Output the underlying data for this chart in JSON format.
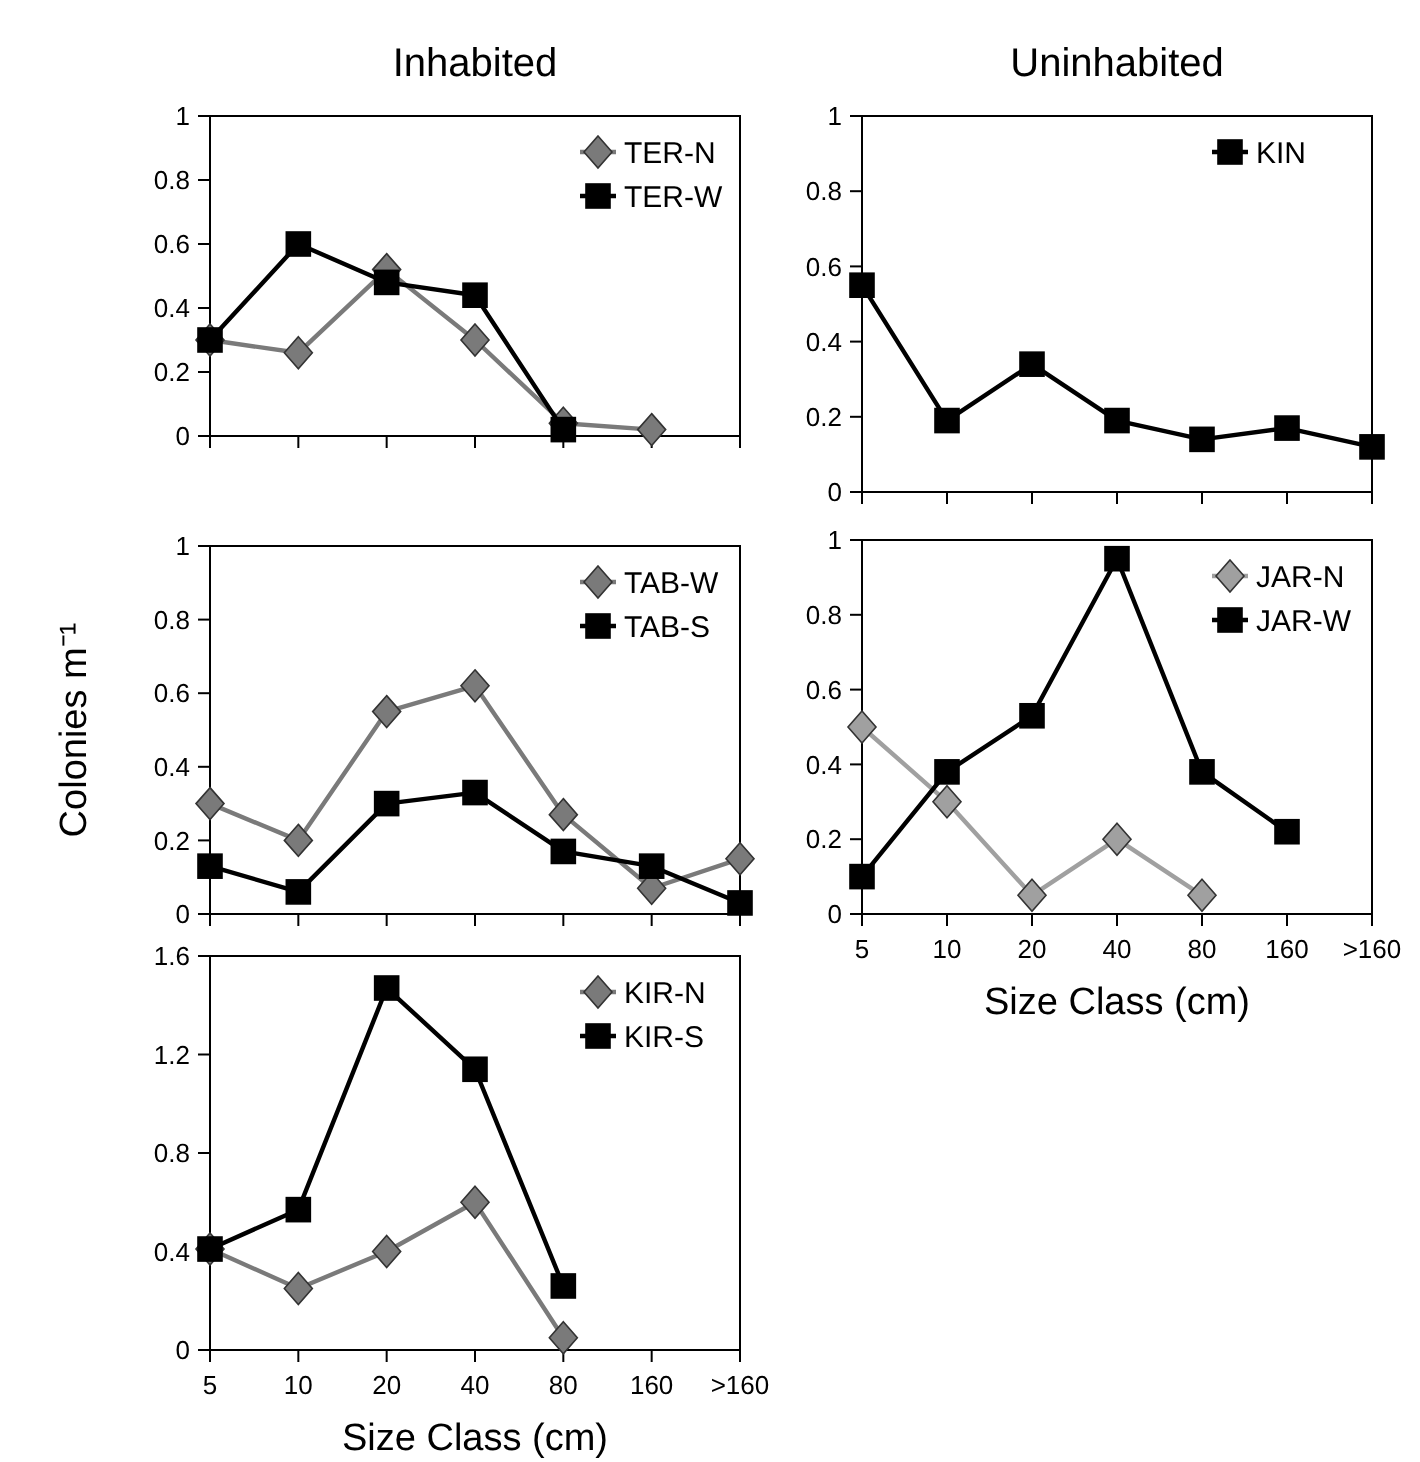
{
  "chart_data": [
    {
      "type": "line",
      "title": "Inhabited",
      "categories": [
        null,
        null,
        null,
        null,
        null,
        null,
        null
      ],
      "ylim": [
        0,
        1
      ],
      "yticks": [
        0,
        0.2,
        0.4,
        0.6,
        0.8,
        1
      ],
      "legend": "top right",
      "series": [
        {
          "name": "TER-N",
          "color": "#7a7a7a",
          "marker": "diamond",
          "values": [
            0.3,
            0.26,
            0.52,
            0.3,
            0.04,
            0.02,
            null
          ]
        },
        {
          "name": "TER-W",
          "color": "#000000",
          "marker": "square",
          "values": [
            0.3,
            0.6,
            0.48,
            0.44,
            0.02,
            null,
            null
          ]
        }
      ]
    },
    {
      "type": "line",
      "ylabel": "Colonies m⁻¹",
      "categories": [
        null,
        null,
        null,
        null,
        null,
        null,
        null
      ],
      "ylim": [
        0,
        1
      ],
      "yticks": [
        0,
        0.2,
        0.4,
        0.6,
        0.8,
        1
      ],
      "legend": "top right",
      "series": [
        {
          "name": "TAB-W",
          "color": "#7a7a7a",
          "marker": "diamond",
          "values": [
            0.3,
            0.2,
            0.55,
            0.62,
            0.27,
            0.07,
            0.15
          ]
        },
        {
          "name": "TAB-S",
          "color": "#000000",
          "marker": "square",
          "values": [
            0.13,
            0.06,
            0.3,
            0.33,
            0.17,
            0.13,
            0.03
          ]
        }
      ]
    },
    {
      "type": "line",
      "xlabel": "Size Class (cm)",
      "categories": [
        "5",
        "10",
        "20",
        "40",
        "80",
        "160",
        ">160"
      ],
      "ylim": [
        0,
        1.6
      ],
      "yticks": [
        0,
        0.4,
        0.8,
        1.2,
        1.6
      ],
      "legend": "top right",
      "series": [
        {
          "name": "KIR-N",
          "color": "#7a7a7a",
          "marker": "diamond",
          "values": [
            0.41,
            0.25,
            0.4,
            0.6,
            0.05,
            null,
            null
          ]
        },
        {
          "name": "KIR-S",
          "color": "#000000",
          "marker": "square",
          "values": [
            0.41,
            0.57,
            1.47,
            1.14,
            0.26,
            null,
            null
          ]
        }
      ]
    },
    {
      "type": "line",
      "title": "Uninhabited",
      "categories": [
        null,
        null,
        null,
        null,
        null,
        null,
        null
      ],
      "ylim": [
        0,
        1
      ],
      "yticks": [
        0,
        0.2,
        0.4,
        0.6,
        0.8,
        1
      ],
      "legend": "top right",
      "series": [
        {
          "name": "KIN",
          "color": "#000000",
          "marker": "square",
          "values": [
            0.55,
            0.19,
            0.34,
            0.19,
            0.14,
            0.17,
            0.12
          ]
        }
      ]
    },
    {
      "type": "line",
      "xlabel": "Size Class (cm)",
      "categories": [
        "5",
        "10",
        "20",
        "40",
        "80",
        "160",
        ">160"
      ],
      "ylim": [
        0,
        1
      ],
      "yticks": [
        0,
        0.2,
        0.4,
        0.6,
        0.8,
        1
      ],
      "legend": "top right",
      "series": [
        {
          "name": "JAR-N",
          "color": "#a0a0a0",
          "marker": "diamond",
          "values": [
            0.5,
            0.3,
            0.05,
            0.2,
            0.05,
            null,
            null
          ]
        },
        {
          "name": "JAR-W",
          "color": "#000000",
          "marker": "square",
          "values": [
            0.1,
            0.38,
            0.53,
            0.95,
            0.38,
            0.22,
            null
          ]
        }
      ]
    }
  ]
}
